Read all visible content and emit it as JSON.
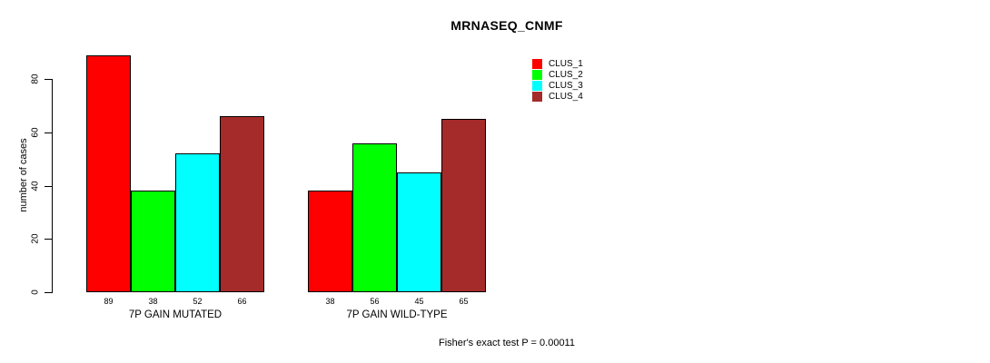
{
  "chart_data": {
    "type": "bar",
    "title": "MRNASEQ_CNMF",
    "xlabel": "",
    "ylabel": "number of cases",
    "ylim": [
      0,
      80
    ],
    "yticks": [
      0,
      20,
      40,
      60,
      80
    ],
    "grid": false,
    "legend_position": "top-right",
    "categories": [
      "7P GAIN MUTATED",
      "7P GAIN WILD-TYPE"
    ],
    "series": [
      {
        "name": "CLUS_1",
        "color": "#ff0000",
        "values": [
          89,
          38
        ]
      },
      {
        "name": "CLUS_2",
        "color": "#00ff00",
        "values": [
          38,
          56
        ]
      },
      {
        "name": "CLUS_3",
        "color": "#00ffff",
        "values": [
          52,
          45
        ]
      },
      {
        "name": "CLUS_4",
        "color": "#a52a2a",
        "values": [
          66,
          65
        ]
      }
    ],
    "bar_value_labels": [
      [
        "89",
        "38",
        "52",
        "66"
      ],
      [
        "38",
        "56",
        "45",
        "65"
      ]
    ],
    "annotation": "Fisher's exact test P = 0.00011"
  },
  "colors": {
    "axis": "#000000",
    "text": "#000000",
    "background": "#ffffff"
  }
}
